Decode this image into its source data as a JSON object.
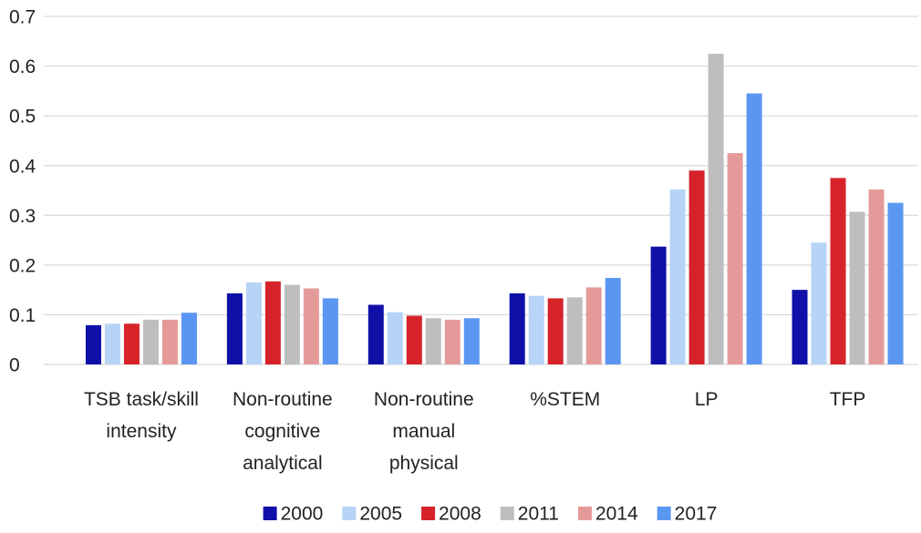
{
  "chart_data": {
    "type": "bar",
    "categories": [
      "TSB task/skill intensity",
      "Non-routine cognitive analytical",
      "Non-routine manual physical",
      "%STEM",
      "LP",
      "TFP"
    ],
    "series": [
      {
        "name": "2000",
        "color": "#1010a8",
        "values": [
          0.079,
          0.143,
          0.12,
          0.143,
          0.237,
          0.15
        ]
      },
      {
        "name": "2005",
        "color": "#b7d4f7",
        "values": [
          0.082,
          0.165,
          0.105,
          0.138,
          0.352,
          0.245
        ]
      },
      {
        "name": "2008",
        "color": "#d6232a",
        "values": [
          0.082,
          0.167,
          0.098,
          0.133,
          0.39,
          0.375
        ]
      },
      {
        "name": "2011",
        "color": "#bebebe",
        "values": [
          0.09,
          0.16,
          0.093,
          0.135,
          0.625,
          0.307
        ]
      },
      {
        "name": "2014",
        "color": "#e59a9a",
        "values": [
          0.09,
          0.153,
          0.09,
          0.155,
          0.425,
          0.352
        ]
      },
      {
        "name": "2017",
        "color": "#5b96f2",
        "values": [
          0.104,
          0.133,
          0.093,
          0.174,
          0.545,
          0.325
        ]
      }
    ],
    "ylim": [
      0,
      0.7
    ],
    "yticks": [
      0,
      0.1,
      0.2,
      0.3,
      0.4,
      0.5,
      0.6,
      0.7
    ],
    "grid": true,
    "legend": "bottom"
  }
}
